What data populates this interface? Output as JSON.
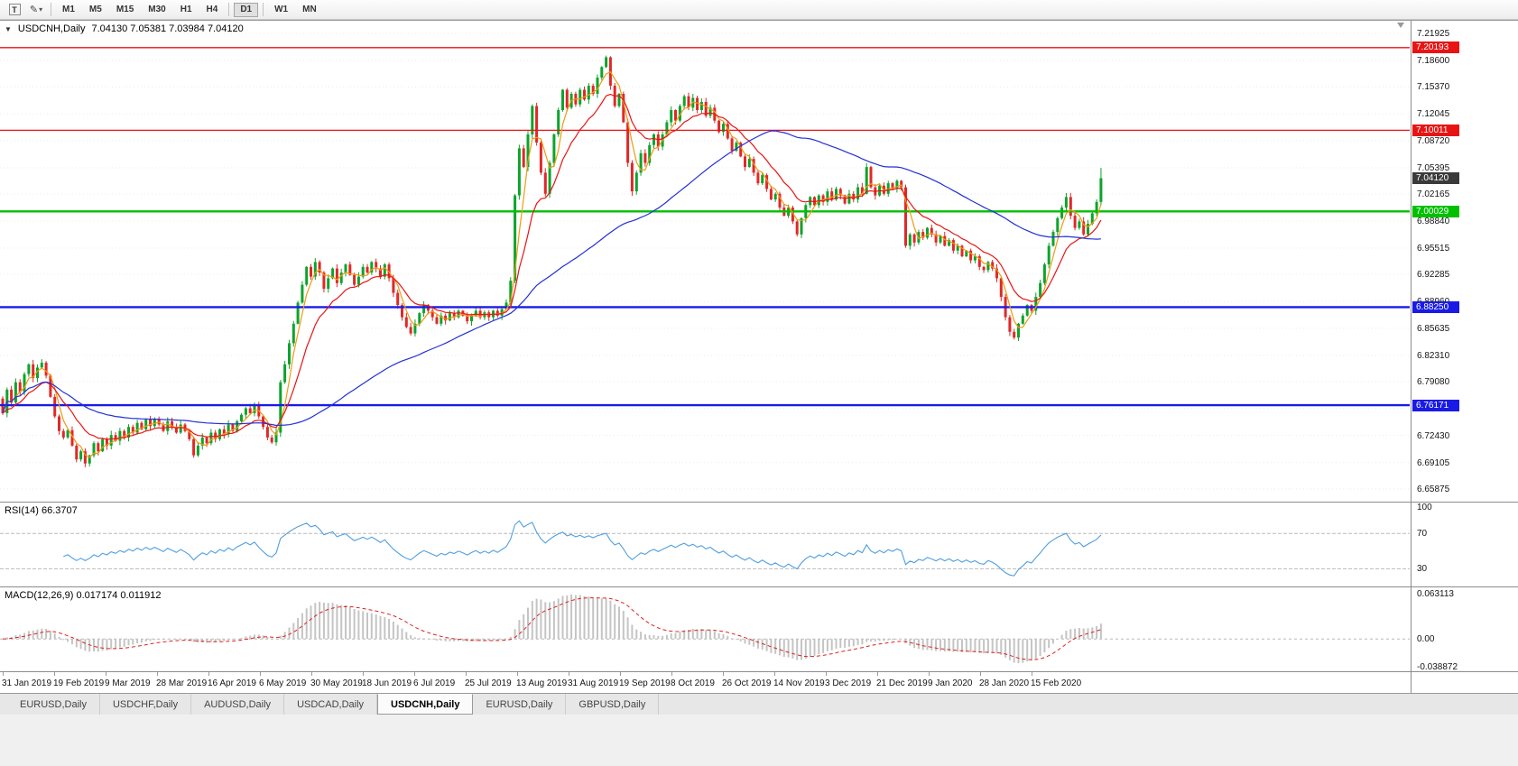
{
  "toolbar": {
    "text_tool_glyph": "T",
    "draw_tool_glyph": "✎",
    "dropdown_glyph": "▾",
    "timeframes": [
      "M1",
      "M5",
      "M15",
      "M30",
      "H1",
      "H4",
      "D1",
      "W1",
      "MN"
    ],
    "active_timeframe": "D1"
  },
  "chart": {
    "dropdown_glyph": "▼",
    "title": "USDCNH,Daily",
    "ohlc_text": "7.04130 7.05381 7.03984 7.04120",
    "open": "7.04130",
    "high": "7.05381",
    "low": "7.03984",
    "close": "7.04120"
  },
  "price_scale": {
    "ticks": [
      "7.21925",
      "7.18600",
      "7.15370",
      "7.12045",
      "7.08720",
      "7.05395",
      "7.02165",
      "6.98840",
      "6.95515",
      "6.92285",
      "6.88960",
      "6.85635",
      "6.82310",
      "6.79080",
      "6.75755",
      "6.72430",
      "6.69105",
      "6.65875"
    ]
  },
  "indicators": {
    "rsi": {
      "label": "RSI(14) 66.3707",
      "ticks": [
        "100",
        "70",
        "30"
      ]
    },
    "macd": {
      "label": "MACD(12,26,9) 0.017174 0.011912",
      "ticks": [
        "0.063113",
        "0.00",
        "-0.038872"
      ]
    }
  },
  "time_axis": [
    "31 Jan 2019",
    "19 Feb 2019",
    "9 Mar 2019",
    "28 Mar 2019",
    "16 Apr 2019",
    "6 May 2019",
    "30 May 2019",
    "18 Jun 2019",
    "6 Jul 2019",
    "25 Jul 2019",
    "13 Aug 2019",
    "31 Aug 2019",
    "19 Sep 2019",
    "8 Oct 2019",
    "26 Oct 2019",
    "14 Nov 2019",
    "3 Dec 2019",
    "21 Dec 2019",
    "9 Jan 2020",
    "28 Jan 2020",
    "15 Feb 2020"
  ],
  "tabs": [
    {
      "label": "EURUSD,Daily",
      "active": false
    },
    {
      "label": "USDCHF,Daily",
      "active": false
    },
    {
      "label": "AUDUSD,Daily",
      "active": false
    },
    {
      "label": "USDCAD,Daily",
      "active": false
    },
    {
      "label": "USDCNH,Daily",
      "active": true
    },
    {
      "label": "EURUSD,Daily",
      "active": false
    },
    {
      "label": "GBPUSD,Daily",
      "active": false
    }
  ],
  "chart_data": {
    "type": "candlestick",
    "symbol": "USDCNH",
    "timeframe": "Daily",
    "x_range": [
      "31 Jan 2019",
      "15 Feb 2020"
    ],
    "y_range": [
      6.643,
      7.235
    ],
    "colors": {
      "bull": "#0ca42c",
      "bear": "#e02828"
    },
    "closes": [
      6.752,
      6.781,
      6.765,
      6.79,
      6.778,
      6.8,
      6.812,
      6.795,
      6.808,
      6.814,
      6.798,
      6.772,
      6.748,
      6.73,
      6.722,
      6.731,
      6.712,
      6.695,
      6.705,
      6.69,
      6.7,
      6.715,
      6.705,
      6.72,
      6.712,
      6.725,
      6.718,
      6.73,
      6.722,
      6.735,
      6.728,
      6.74,
      6.732,
      6.744,
      6.736,
      6.745,
      6.738,
      6.73,
      6.742,
      6.735,
      6.728,
      6.738,
      6.73,
      6.72,
      6.7,
      6.712,
      6.722,
      6.715,
      6.728,
      6.72,
      6.732,
      6.726,
      6.738,
      6.73,
      6.742,
      6.75,
      6.758,
      6.752,
      6.762,
      6.748,
      6.735,
      6.722,
      6.716,
      6.728,
      6.79,
      6.812,
      6.838,
      6.862,
      6.888,
      6.91,
      6.932,
      6.92,
      6.938,
      6.925,
      6.905,
      6.918,
      6.93,
      6.912,
      6.925,
      6.935,
      6.922,
      6.91,
      6.92,
      6.932,
      6.925,
      6.938,
      6.93,
      6.92,
      6.935,
      6.918,
      6.9,
      6.885,
      6.87,
      6.858,
      6.85,
      6.862,
      6.875,
      6.885,
      6.878,
      6.87,
      6.862,
      6.872,
      6.866,
      6.875,
      6.87,
      6.878,
      6.872,
      6.865,
      6.872,
      6.878,
      6.87,
      6.876,
      6.87,
      6.878,
      6.872,
      6.88,
      6.888,
      6.915,
      7.02,
      7.078,
      7.055,
      7.095,
      7.13,
      7.085,
      7.048,
      7.022,
      7.06,
      7.095,
      7.125,
      7.15,
      7.128,
      7.145,
      7.132,
      7.15,
      7.138,
      7.155,
      7.145,
      7.165,
      7.178,
      7.19,
      7.155,
      7.13,
      7.145,
      7.11,
      7.06,
      7.025,
      7.048,
      7.072,
      7.06,
      7.082,
      7.095,
      7.08,
      7.095,
      7.11,
      7.125,
      7.112,
      7.13,
      7.142,
      7.128,
      7.14,
      7.125,
      7.135,
      7.118,
      7.128,
      7.112,
      7.098,
      7.108,
      7.09,
      7.075,
      7.085,
      7.068,
      7.055,
      7.065,
      7.048,
      7.035,
      7.045,
      7.028,
      7.015,
      7.022,
      7.005,
      6.995,
      7.005,
      6.988,
      6.972,
      6.992,
      7.008,
      7.018,
      7.008,
      7.02,
      7.012,
      7.025,
      7.015,
      7.028,
      7.02,
      7.01,
      7.022,
      7.015,
      7.03,
      7.022,
      7.055,
      7.03,
      7.02,
      7.032,
      7.022,
      7.035,
      7.028,
      7.038,
      7.03,
      6.958,
      6.972,
      6.962,
      6.975,
      6.968,
      6.98,
      6.972,
      6.962,
      6.97,
      6.958,
      6.965,
      6.952,
      6.958,
      6.945,
      6.952,
      6.94,
      6.945,
      6.932,
      6.928,
      6.938,
      6.93,
      6.918,
      6.895,
      6.87,
      6.852,
      6.845,
      6.862,
      6.872,
      6.885,
      6.878,
      6.895,
      6.912,
      6.935,
      6.958,
      6.975,
      6.992,
      7.005,
      7.018,
      6.995,
      6.98,
      6.988,
      6.972,
      6.985,
      6.998,
      7.012,
      7.0412
    ],
    "last_bar": {
      "open": 7.0413,
      "high": 7.0538,
      "low": 7.0398,
      "close": 7.0412
    },
    "moving_averages": [
      {
        "name": "ma-fast-line",
        "period": 4,
        "method": "sma",
        "color": "#f09a12"
      },
      {
        "name": "ma-mid-line",
        "period": 12,
        "method": "ema",
        "color": "#e81414"
      },
      {
        "name": "ma-slow-line",
        "period": 60,
        "method": "sma",
        "color": "#2330d6"
      }
    ],
    "levels": [
      {
        "value": 7.20193,
        "label": "7.20193",
        "color": "#e81414",
        "width": 1.3
      },
      {
        "value": 7.10011,
        "label": "7.10011",
        "color": "#e81414",
        "width": 1.3
      },
      {
        "value": 7.00029,
        "label": "7.00029",
        "color": "#00c000",
        "width": 2.4
      },
      {
        "value": 6.8825,
        "label": "6.88250",
        "color": "#1a1ae6",
        "width": 2.4
      },
      {
        "value": 6.76171,
        "label": "6.76171",
        "color": "#1a1ae6",
        "width": 2.4
      }
    ],
    "current_price": {
      "value": 7.0412,
      "label": "7.04120",
      "color": "#3a3a3a"
    },
    "rsi": {
      "period": 14,
      "current": 66.3707,
      "overbought": 70,
      "oversold": 30,
      "line_color": "#4f9fe0"
    },
    "macd": {
      "fast": 12,
      "slow": 26,
      "signal": 9,
      "current_macd": 0.017174,
      "current_signal": 0.011912,
      "histogram_color": "#c4c4c4",
      "signal_color": "#e02020"
    }
  }
}
